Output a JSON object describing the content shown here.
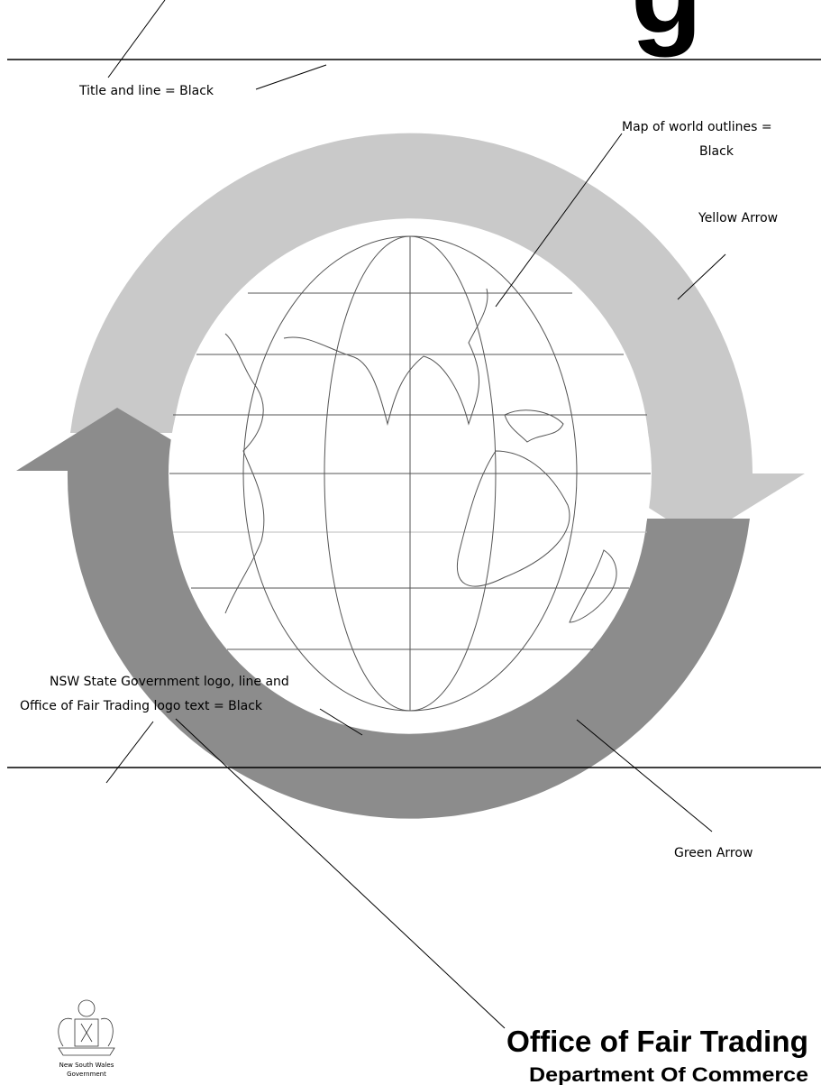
{
  "header": {
    "title_fragment": "g"
  },
  "annotations": {
    "title": "Title and line = Black",
    "map": [
      "Map of world outlines =",
      "Black"
    ],
    "yellow": "Yellow Arrow",
    "green": "Green Arrow",
    "footer": [
      "NSW State Government logo, line and",
      "Office of Fair Trading logo text = Black"
    ]
  },
  "footer": {
    "logo_text": [
      "New South Wales",
      "Government"
    ],
    "office": "Office of Fair Trading",
    "department": "Department Of Commerce"
  }
}
